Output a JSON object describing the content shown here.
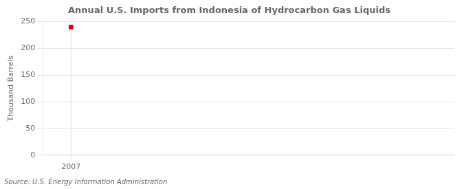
{
  "chart_data": {
    "type": "scatter",
    "title": "Annual U.S. Imports from Indonesia of Hydrocarbon Gas Liquids",
    "ylabel": "Thousand Barrels",
    "source": "Source: U.S. Energy Information Administration",
    "x": [
      2007
    ],
    "values": [
      240
    ],
    "color": "#dd0000",
    "marker": "square",
    "xlim": [
      2006.3,
      2016.5
    ],
    "xticks": [
      2007
    ],
    "ylim": [
      0,
      250
    ],
    "yticks": [
      0,
      50,
      100,
      150,
      200,
      250
    ],
    "grid": true
  }
}
